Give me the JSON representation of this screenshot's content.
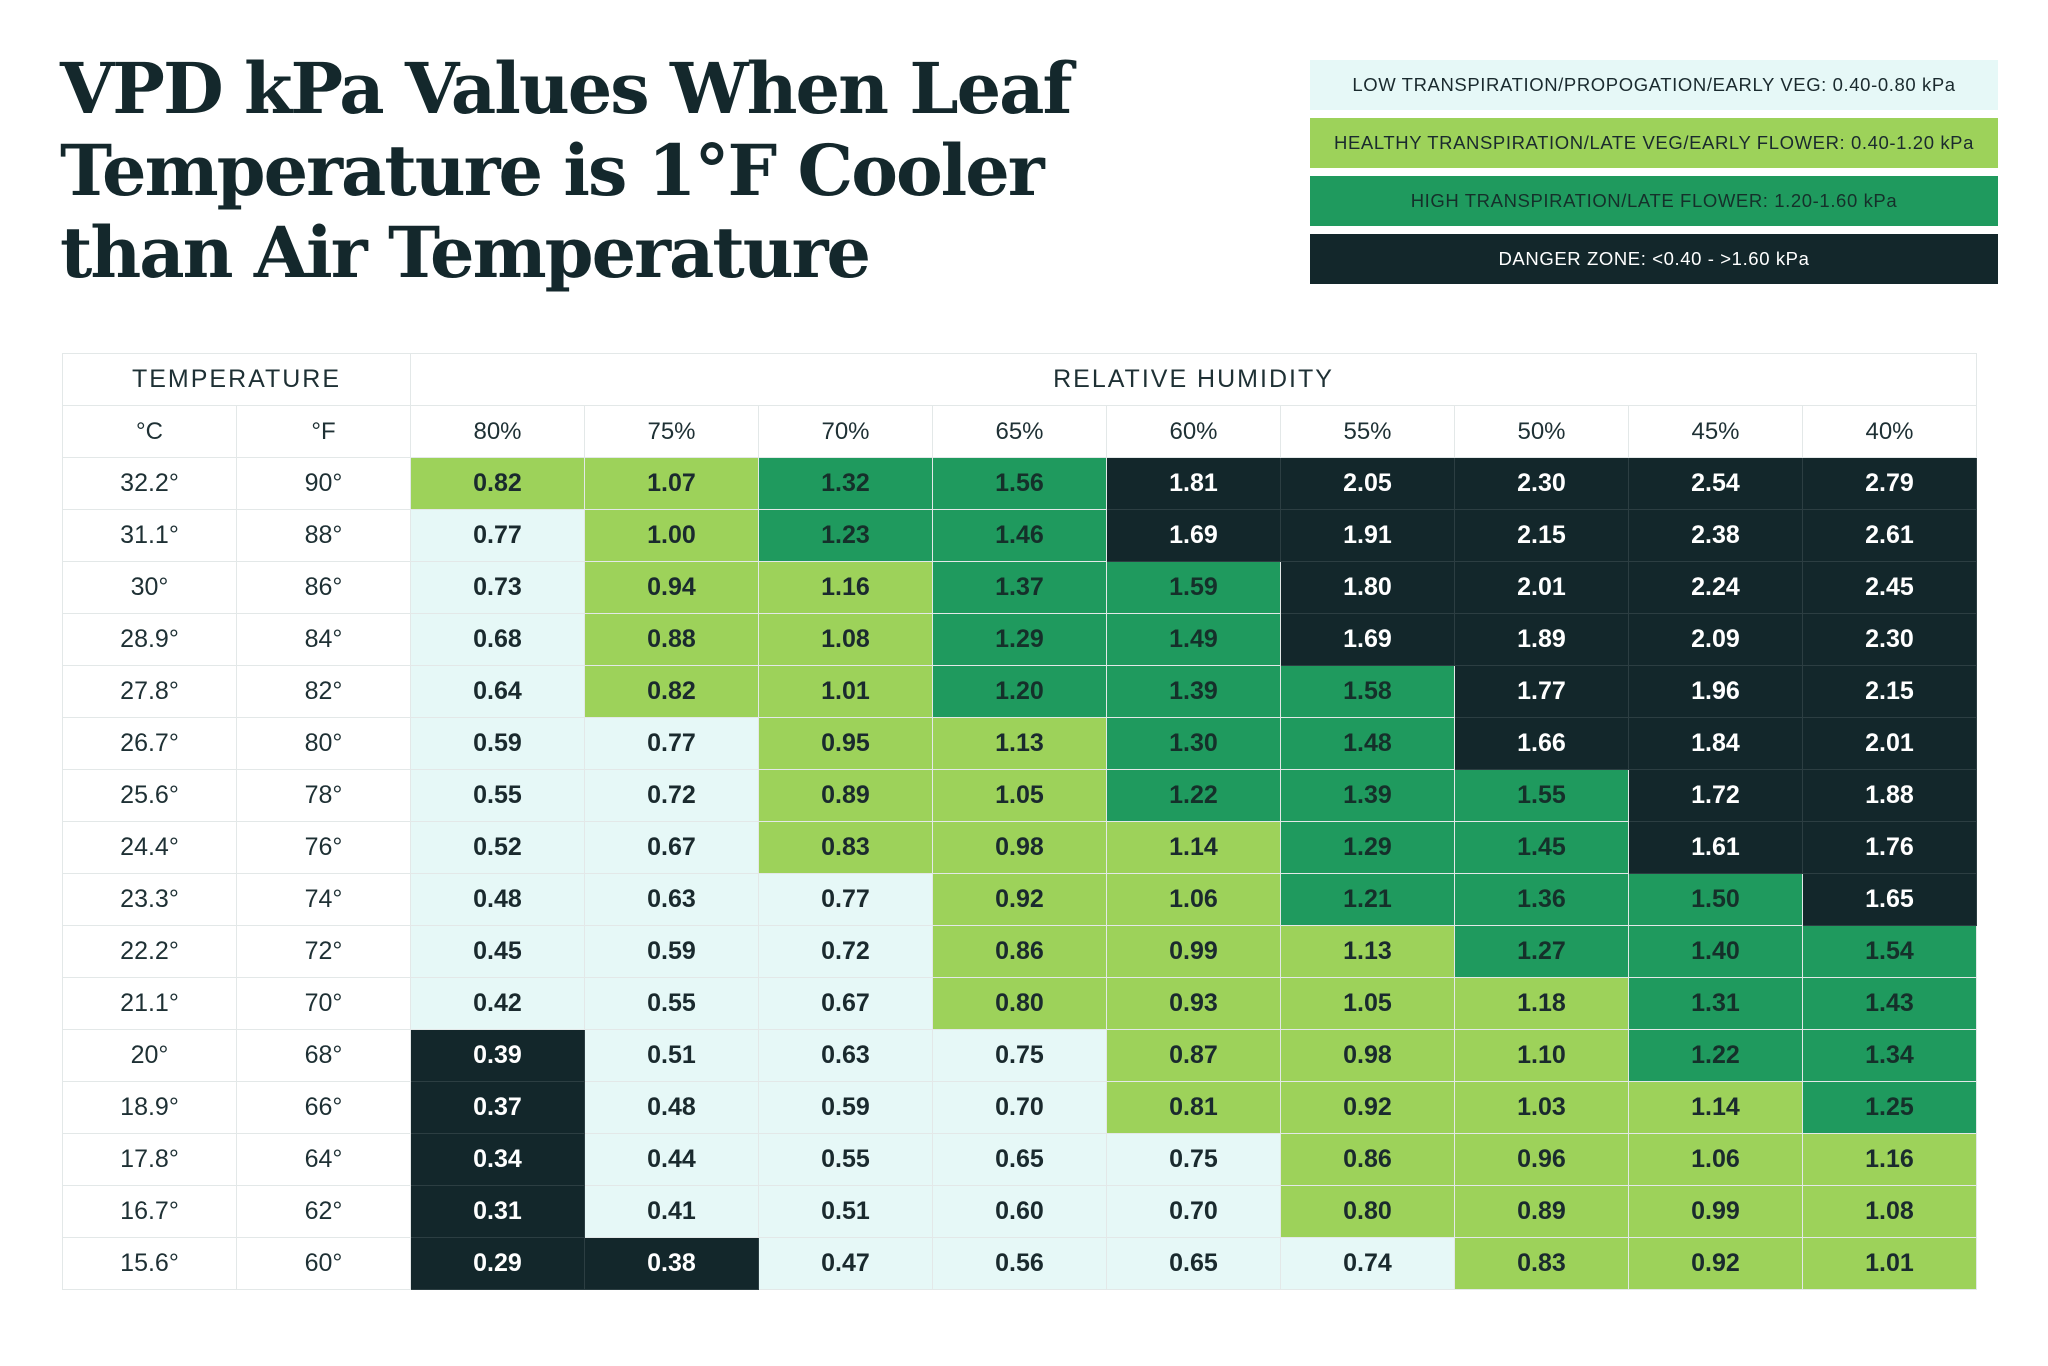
{
  "title": {
    "line1": "VPD kPa Values When Leaf",
    "line2a": "Temperature is ",
    "line2b": "1°F Cooler",
    "line3": "than Air Temperature"
  },
  "colors": {
    "low": "#e6f8f7",
    "healthy": "#9dd25a",
    "high": "#1f9a5e",
    "danger": "#13272b",
    "low_text": "#1a2a2e",
    "healthy_text": "#1a2a2e",
    "high_text": "#15302a",
    "danger_text": "#ffffff"
  },
  "legend": [
    {
      "label": "LOW TRANSPIRATION/PROPOGATION/EARLY VEG: 0.40-0.80 kPa",
      "zone": "low"
    },
    {
      "label": "HEALTHY TRANSPIRATION/LATE VEG/EARLY FLOWER: 0.40-1.20 kPa",
      "zone": "healthy"
    },
    {
      "label": "HIGH TRANSPIRATION/LATE FLOWER: 1.20-1.60 kPa",
      "zone": "high"
    },
    {
      "label": "DANGER ZONE: <0.40 - >1.60 kPa",
      "zone": "danger"
    }
  ],
  "chart_data": {
    "type": "table",
    "title": "VPD kPa Values When Leaf Temperature is 1°F Cooler than Air Temperature",
    "header_temperature": "TEMPERATURE",
    "header_humidity": "RELATIVE HUMIDITY",
    "unit_c": "°C",
    "unit_f": "°F",
    "humidity": [
      "80%",
      "75%",
      "70%",
      "65%",
      "60%",
      "55%",
      "50%",
      "45%",
      "40%"
    ],
    "rows": [
      {
        "c": "32.2°",
        "f": "90°",
        "values": [
          "0.82",
          "1.07",
          "1.32",
          "1.56",
          "1.81",
          "2.05",
          "2.30",
          "2.54",
          "2.79"
        ],
        "zones": [
          "healthy",
          "healthy",
          "high",
          "high",
          "danger",
          "danger",
          "danger",
          "danger",
          "danger"
        ]
      },
      {
        "c": "31.1°",
        "f": "88°",
        "values": [
          "0.77",
          "1.00",
          "1.23",
          "1.46",
          "1.69",
          "1.91",
          "2.15",
          "2.38",
          "2.61"
        ],
        "zones": [
          "low",
          "healthy",
          "high",
          "high",
          "danger",
          "danger",
          "danger",
          "danger",
          "danger"
        ]
      },
      {
        "c": "30°",
        "f": "86°",
        "values": [
          "0.73",
          "0.94",
          "1.16",
          "1.37",
          "1.59",
          "1.80",
          "2.01",
          "2.24",
          "2.45"
        ],
        "zones": [
          "low",
          "healthy",
          "healthy",
          "high",
          "high",
          "danger",
          "danger",
          "danger",
          "danger"
        ]
      },
      {
        "c": "28.9°",
        "f": "84°",
        "values": [
          "0.68",
          "0.88",
          "1.08",
          "1.29",
          "1.49",
          "1.69",
          "1.89",
          "2.09",
          "2.30"
        ],
        "zones": [
          "low",
          "healthy",
          "healthy",
          "high",
          "high",
          "danger",
          "danger",
          "danger",
          "danger"
        ]
      },
      {
        "c": "27.8°",
        "f": "82°",
        "values": [
          "0.64",
          "0.82",
          "1.01",
          "1.20",
          "1.39",
          "1.58",
          "1.77",
          "1.96",
          "2.15"
        ],
        "zones": [
          "low",
          "healthy",
          "healthy",
          "high",
          "high",
          "high",
          "danger",
          "danger",
          "danger"
        ]
      },
      {
        "c": "26.7°",
        "f": "80°",
        "values": [
          "0.59",
          "0.77",
          "0.95",
          "1.13",
          "1.30",
          "1.48",
          "1.66",
          "1.84",
          "2.01"
        ],
        "zones": [
          "low",
          "low",
          "healthy",
          "healthy",
          "high",
          "high",
          "danger",
          "danger",
          "danger"
        ]
      },
      {
        "c": "25.6°",
        "f": "78°",
        "values": [
          "0.55",
          "0.72",
          "0.89",
          "1.05",
          "1.22",
          "1.39",
          "1.55",
          "1.72",
          "1.88"
        ],
        "zones": [
          "low",
          "low",
          "healthy",
          "healthy",
          "high",
          "high",
          "high",
          "danger",
          "danger"
        ]
      },
      {
        "c": "24.4°",
        "f": "76°",
        "values": [
          "0.52",
          "0.67",
          "0.83",
          "0.98",
          "1.14",
          "1.29",
          "1.45",
          "1.61",
          "1.76"
        ],
        "zones": [
          "low",
          "low",
          "healthy",
          "healthy",
          "healthy",
          "high",
          "high",
          "danger",
          "danger"
        ]
      },
      {
        "c": "23.3°",
        "f": "74°",
        "values": [
          "0.48",
          "0.63",
          "0.77",
          "0.92",
          "1.06",
          "1.21",
          "1.36",
          "1.50",
          "1.65"
        ],
        "zones": [
          "low",
          "low",
          "low",
          "healthy",
          "healthy",
          "high",
          "high",
          "high",
          "danger"
        ]
      },
      {
        "c": "22.2°",
        "f": "72°",
        "values": [
          "0.45",
          "0.59",
          "0.72",
          "0.86",
          "0.99",
          "1.13",
          "1.27",
          "1.40",
          "1.54"
        ],
        "zones": [
          "low",
          "low",
          "low",
          "healthy",
          "healthy",
          "healthy",
          "high",
          "high",
          "high"
        ]
      },
      {
        "c": "21.1°",
        "f": "70°",
        "values": [
          "0.42",
          "0.55",
          "0.67",
          "0.80",
          "0.93",
          "1.05",
          "1.18",
          "1.31",
          "1.43"
        ],
        "zones": [
          "low",
          "low",
          "low",
          "healthy",
          "healthy",
          "healthy",
          "healthy",
          "high",
          "high"
        ]
      },
      {
        "c": "20°",
        "f": "68°",
        "values": [
          "0.39",
          "0.51",
          "0.63",
          "0.75",
          "0.87",
          "0.98",
          "1.10",
          "1.22",
          "1.34"
        ],
        "zones": [
          "danger",
          "low",
          "low",
          "low",
          "healthy",
          "healthy",
          "healthy",
          "high",
          "high"
        ]
      },
      {
        "c": "18.9°",
        "f": "66°",
        "values": [
          "0.37",
          "0.48",
          "0.59",
          "0.70",
          "0.81",
          "0.92",
          "1.03",
          "1.14",
          "1.25"
        ],
        "zones": [
          "danger",
          "low",
          "low",
          "low",
          "healthy",
          "healthy",
          "healthy",
          "healthy",
          "high"
        ]
      },
      {
        "c": "17.8°",
        "f": "64°",
        "values": [
          "0.34",
          "0.44",
          "0.55",
          "0.65",
          "0.75",
          "0.86",
          "0.96",
          "1.06",
          "1.16"
        ],
        "zones": [
          "danger",
          "low",
          "low",
          "low",
          "low",
          "healthy",
          "healthy",
          "healthy",
          "healthy"
        ]
      },
      {
        "c": "16.7°",
        "f": "62°",
        "values": [
          "0.31",
          "0.41",
          "0.51",
          "0.60",
          "0.70",
          "0.80",
          "0.89",
          "0.99",
          "1.08"
        ],
        "zones": [
          "danger",
          "low",
          "low",
          "low",
          "low",
          "healthy",
          "healthy",
          "healthy",
          "healthy"
        ]
      },
      {
        "c": "15.6°",
        "f": "60°",
        "values": [
          "0.29",
          "0.38",
          "0.47",
          "0.56",
          "0.65",
          "0.74",
          "0.83",
          "0.92",
          "1.01"
        ],
        "zones": [
          "danger",
          "danger",
          "low",
          "low",
          "low",
          "low",
          "healthy",
          "healthy",
          "healthy"
        ]
      }
    ]
  }
}
